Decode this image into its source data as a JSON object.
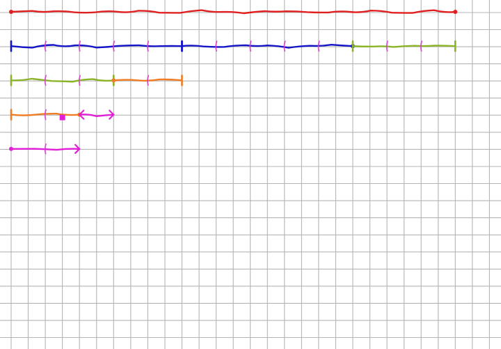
{
  "canvas": {
    "background": "#ffffff",
    "grid_color": "#b4b4b4"
  },
  "strokes": [
    {
      "id": "red-line",
      "color": "#e02020",
      "row": 0,
      "start": 0,
      "end": 13,
      "ticks": [],
      "start_cap": "dot",
      "end_cap": "dot"
    },
    {
      "id": "blue-line-1",
      "color": "#1414c8",
      "row": 1,
      "start": 0,
      "end": 5,
      "ticks": [
        1,
        2,
        3,
        4
      ],
      "start_cap": "bar",
      "end_cap": "bar"
    },
    {
      "id": "blue-line-2",
      "color": "#1414c8",
      "row": 1,
      "start": 5,
      "end": 10,
      "ticks": [
        6,
        7,
        8,
        9
      ],
      "start_cap": "bar",
      "end_cap": "dot"
    },
    {
      "id": "green-line-1",
      "color": "#8cb428",
      "row": 1,
      "start": 10,
      "end": 13,
      "ticks": [
        11,
        12
      ],
      "start_cap": "bar",
      "end_cap": "bar"
    },
    {
      "id": "green-line-2",
      "color": "#8cb428",
      "row": 2,
      "start": 0,
      "end": 3,
      "ticks": [
        1,
        2
      ],
      "start_cap": "bar",
      "end_cap": "bar"
    },
    {
      "id": "orange-line-1",
      "color": "#f07c24",
      "row": 2,
      "start": 3,
      "end": 5,
      "ticks": [
        4
      ],
      "start_cap": "dot",
      "end_cap": "bar"
    },
    {
      "id": "orange-line-2",
      "color": "#f07c24",
      "row": 3,
      "start": 0,
      "end": 2,
      "ticks": [
        1
      ],
      "start_cap": "bar",
      "end_cap": "dot"
    },
    {
      "id": "magenta-line-1",
      "color": "#e21fd6",
      "row": 3,
      "start": 2,
      "end": 3,
      "ticks": [],
      "start_cap": "arrow",
      "end_cap": "arrow"
    },
    {
      "id": "magenta-line-2",
      "color": "#e21fd6",
      "row": 4,
      "start": 0,
      "end": 2,
      "ticks": [
        1
      ],
      "start_cap": "dot",
      "end_cap": "arrow"
    }
  ],
  "tick_color": "#d83cd0",
  "markers": [
    {
      "id": "magenta-square",
      "color": "#e21fd6",
      "row": 3,
      "pos": 1.5,
      "shape": "square"
    }
  ]
}
